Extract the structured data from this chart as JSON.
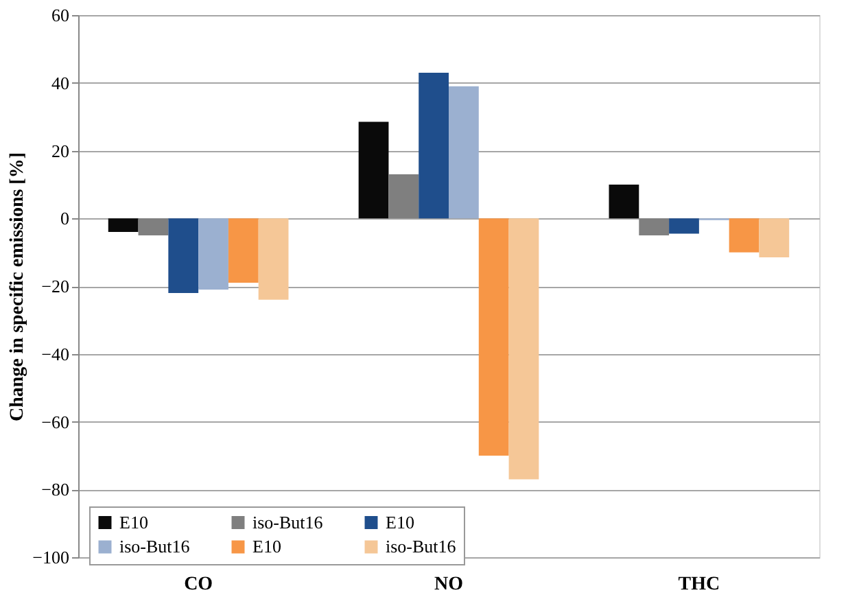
{
  "chart_data": {
    "type": "bar",
    "ylabel": "Change in specific emissions [%]",
    "categories": [
      "CO",
      "NO",
      "THC"
    ],
    "series": [
      {
        "name": "E10",
        "color": "#0a0a0a",
        "values": [
          -4,
          28.5,
          10
        ]
      },
      {
        "name": "iso-But16",
        "color": "#7f7f7f",
        "values": [
          -5,
          13,
          -5
        ]
      },
      {
        "name": "E10",
        "color": "#1f4e8c",
        "values": [
          -22,
          43,
          -4.5
        ]
      },
      {
        "name": "iso-But16",
        "color": "#9bb0d0",
        "values": [
          -21,
          39,
          -0.5
        ]
      },
      {
        "name": "E10",
        "color": "#f79646",
        "values": [
          -19,
          -70,
          -10
        ]
      },
      {
        "name": "iso-But16",
        "color": "#f5c797",
        "values": [
          -24,
          -77,
          -11.5
        ]
      }
    ],
    "ylim": [
      -100,
      60
    ],
    "yticks": [
      -100,
      -80,
      -60,
      -40,
      -20,
      0,
      20,
      40,
      60
    ],
    "grid": "y",
    "legend": "bottom"
  }
}
